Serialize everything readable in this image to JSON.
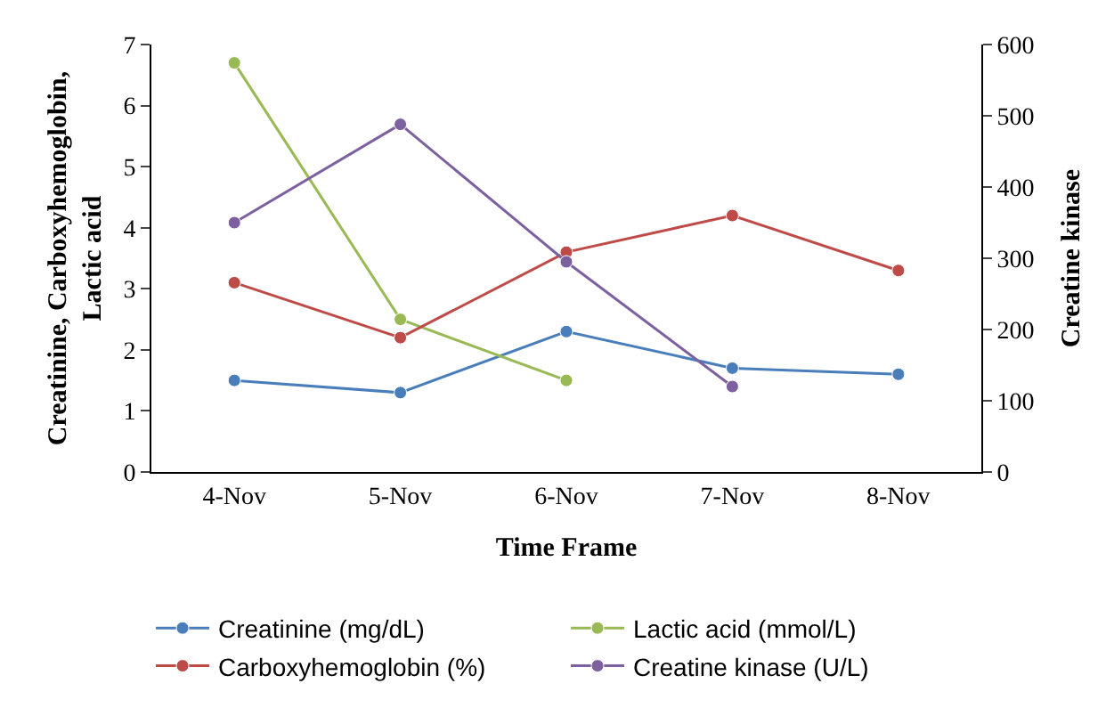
{
  "chart_data": {
    "type": "line",
    "xlabel": "Time Frame",
    "ylabel": "Creatinine, Carboxyhemoglobin,\nLactic acid",
    "y2label": "Creatine kinase",
    "categories": [
      "4-Nov",
      "5-Nov",
      "6-Nov",
      "7-Nov",
      "8-Nov"
    ],
    "series": [
      {
        "name": "Creatinine (mg/dL)",
        "color": "#4a7ebb",
        "values": [
          1.5,
          1.3,
          2.3,
          1.7,
          1.6
        ]
      },
      {
        "name": "Lactic acid (mmol/L)",
        "color": "#98b954",
        "values": [
          6.7,
          2.5,
          1.5,
          null,
          null
        ]
      },
      {
        "name": "Carboxyhemoglobin (%)",
        "color": "#be4b48",
        "values": [
          3.1,
          2.2,
          3.6,
          4.2,
          3.3
        ]
      },
      {
        "name": "Creatine kinase (U/L)",
        "color": "#7d60a0",
        "axis": "y2",
        "values": [
          350,
          488,
          295,
          120,
          null
        ]
      }
    ],
    "ylim": [
      0,
      7
    ],
    "yticks": [
      0,
      1,
      2,
      3,
      4,
      5,
      6,
      7
    ],
    "y2lim": [
      0,
      600
    ],
    "y2ticks": [
      0,
      100,
      200,
      300,
      400,
      500,
      600
    ],
    "legend": "bottom",
    "marker": "circle",
    "line_style": "solid"
  }
}
